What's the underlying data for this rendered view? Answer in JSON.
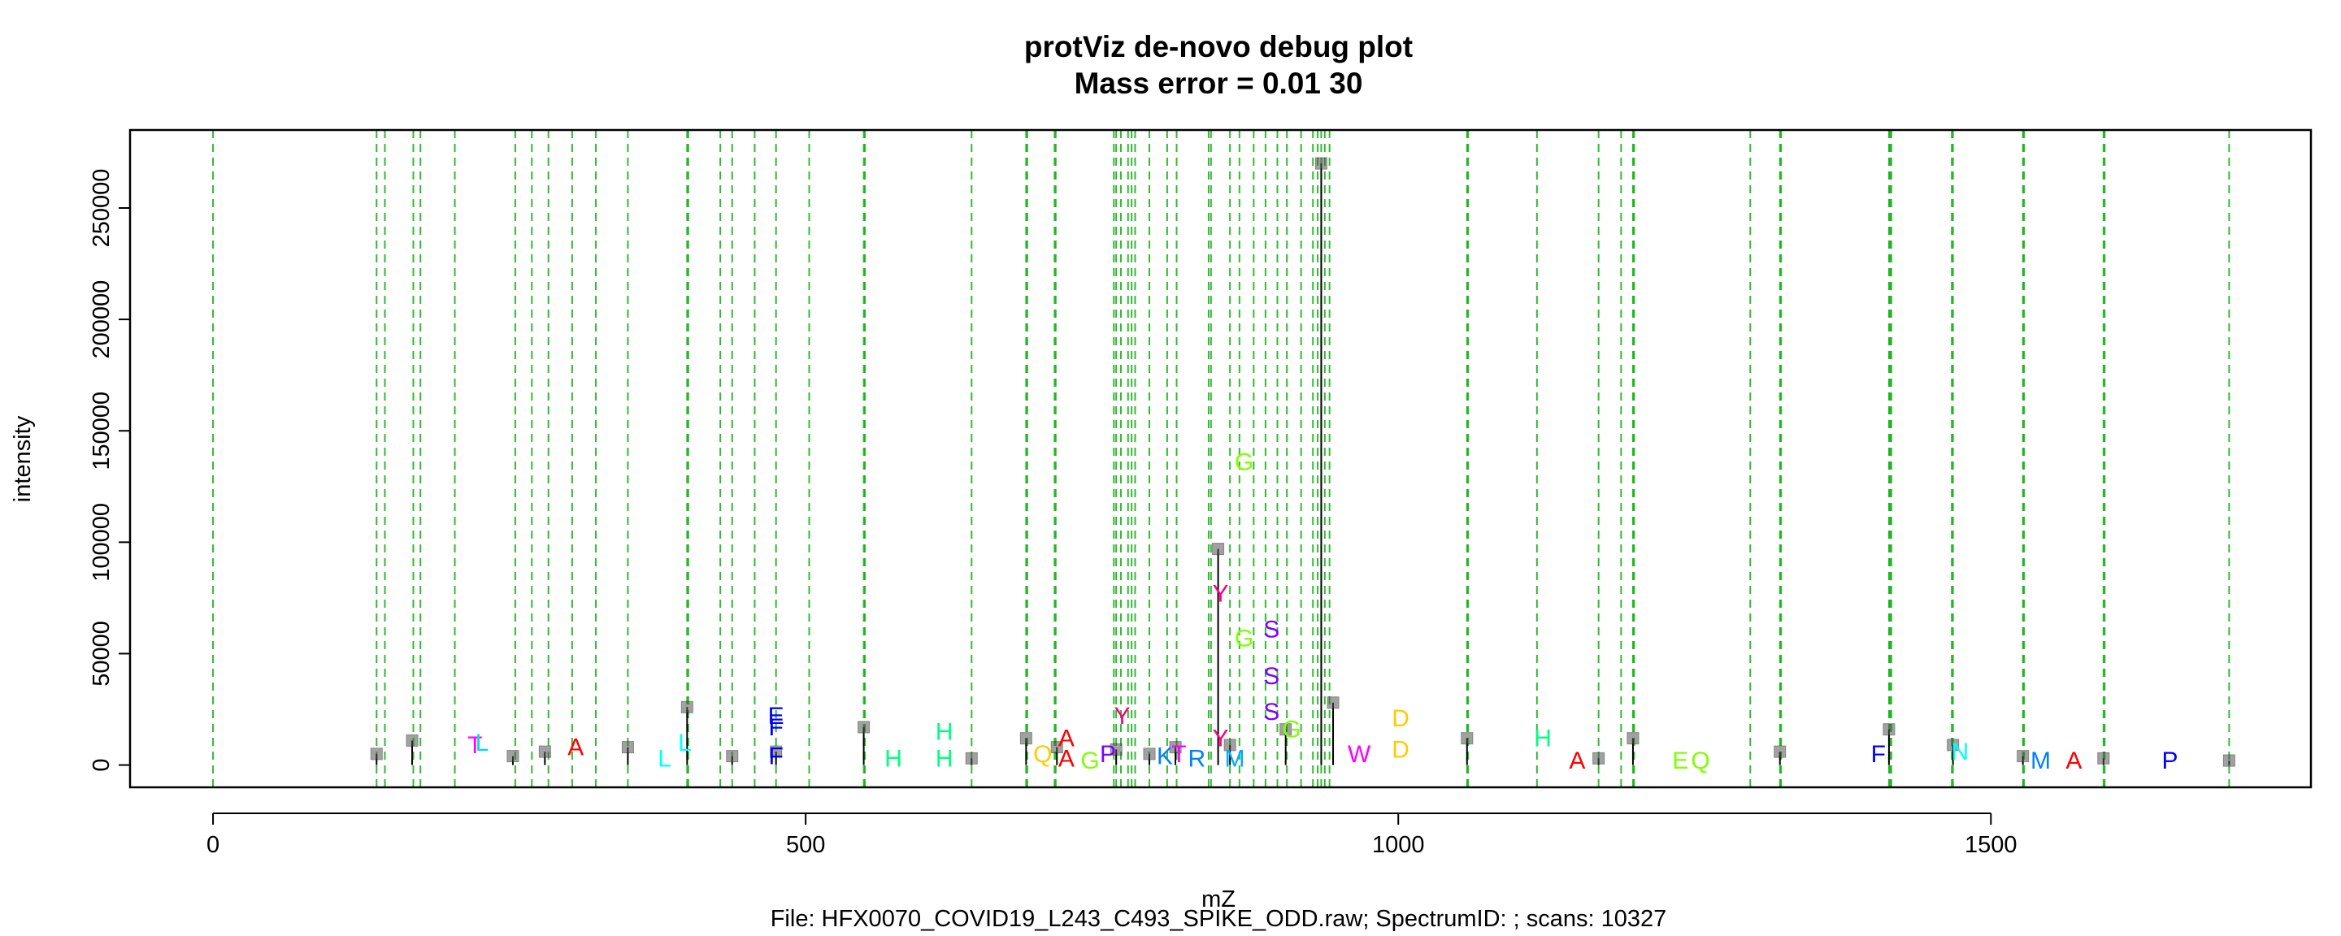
{
  "chart_data": {
    "type": "scatter",
    "title": "protViz de-novo debug plot",
    "subtitle": "Mass error = 0.01 30",
    "xlabel": "mZ",
    "ylabel": "intensity",
    "caption": "File: HFX0070_COVID19_L243_C493_SPIKE_ODD.raw; SpectrumID: ; scans: 10327",
    "xlim": [
      -70,
      1770
    ],
    "ylim": [
      -10000,
      285000
    ],
    "x_ticks": [
      0,
      500,
      1000,
      1500
    ],
    "x_tick_labels": [
      "0",
      "500",
      "1000",
      "1500"
    ],
    "y_ticks": [
      0,
      50000,
      100000,
      150000,
      200000,
      250000
    ],
    "y_tick_labels": [
      "0",
      "50000",
      "100000",
      "150000",
      "200000",
      "250000"
    ],
    "grid": false,
    "reference_lines": {
      "color": "#00aa00",
      "x": [
        0,
        138,
        145,
        169,
        175,
        204,
        255,
        269,
        283,
        303,
        323,
        350,
        400,
        401,
        428,
        438,
        457,
        475,
        503,
        549,
        550,
        640,
        686,
        687,
        710,
        711,
        760,
        762,
        766,
        772,
        775,
        778,
        790,
        805,
        813,
        840,
        842,
        858,
        866,
        878,
        888,
        898,
        906,
        918,
        928,
        932,
        935,
        938,
        942,
        1058,
        1059,
        1117,
        1169,
        1188,
        1198,
        1199,
        1297,
        1322,
        1323,
        1414,
        1415,
        1416,
        1467,
        1468,
        1527,
        1528,
        1595,
        1596,
        1701
      ]
    },
    "peaks": {
      "color": "#000000",
      "x": [
        138,
        168,
        253,
        280,
        350,
        400,
        438,
        475,
        549,
        640,
        686,
        712,
        762,
        790,
        812,
        848,
        858,
        905,
        935,
        945,
        1058,
        1169,
        1198,
        1322,
        1414,
        1468,
        1527,
        1595,
        1701
      ],
      "y": [
        5000,
        11000,
        4000,
        6000,
        8000,
        26000,
        4000,
        6000,
        17000,
        3000,
        12000,
        8000,
        7000,
        5000,
        8000,
        97000,
        9000,
        16000,
        270000,
        28000,
        12000,
        3000,
        12000,
        6000,
        16000,
        9000,
        4000,
        3000,
        2000
      ]
    },
    "ion_labels": [
      {
        "text": "T",
        "x": 221,
        "y": 9000,
        "color": "#ff00ff"
      },
      {
        "text": "L",
        "x": 227,
        "y": 10000,
        "color": "#00dddd"
      },
      {
        "text": "A",
        "x": 306,
        "y": 8000,
        "color": "#ff0000"
      },
      {
        "text": "L",
        "x": 381,
        "y": 3000,
        "color": "#00ffff"
      },
      {
        "text": "L",
        "x": 398,
        "y": 10000,
        "color": "#00ffff"
      },
      {
        "text": "E",
        "x": 475,
        "y": 22000,
        "color": "#0000ff"
      },
      {
        "text": "F",
        "x": 475,
        "y": 17000,
        "color": "#0000ff"
      },
      {
        "text": "F",
        "x": 475,
        "y": 4000,
        "color": "#0000ff"
      },
      {
        "text": "H",
        "x": 574,
        "y": 3000,
        "color": "#00ff80"
      },
      {
        "text": "H",
        "x": 617,
        "y": 3000,
        "color": "#00ff80"
      },
      {
        "text": "H",
        "x": 617,
        "y": 15000,
        "color": "#00ff80"
      },
      {
        "text": "Q",
        "x": 700,
        "y": 5000,
        "color": "#ffcc00"
      },
      {
        "text": "A",
        "x": 720,
        "y": 12000,
        "color": "#ff0000"
      },
      {
        "text": "A",
        "x": 720,
        "y": 3000,
        "color": "#ff0000"
      },
      {
        "text": "G",
        "x": 740,
        "y": 2000,
        "color": "#80ff00"
      },
      {
        "text": "P",
        "x": 755,
        "y": 5000,
        "color": "#8000ff"
      },
      {
        "text": "Y",
        "x": 767,
        "y": 22000,
        "color": "#ff0080"
      },
      {
        "text": "T",
        "x": 815,
        "y": 5000,
        "color": "#ff00ff"
      },
      {
        "text": "R",
        "x": 830,
        "y": 3000,
        "color": "#0080ff"
      },
      {
        "text": "K",
        "x": 803,
        "y": 4000,
        "color": "#0080ff"
      },
      {
        "text": "Y",
        "x": 850,
        "y": 77000,
        "color": "#ff0080"
      },
      {
        "text": "Y",
        "x": 850,
        "y": 12000,
        "color": "#ff0080"
      },
      {
        "text": "G",
        "x": 870,
        "y": 136000,
        "color": "#80ff00"
      },
      {
        "text": "G",
        "x": 870,
        "y": 57000,
        "color": "#80ff00"
      },
      {
        "text": "M",
        "x": 862,
        "y": 3000,
        "color": "#00aaff"
      },
      {
        "text": "S",
        "x": 893,
        "y": 61000,
        "color": "#8000ff"
      },
      {
        "text": "S",
        "x": 893,
        "y": 40000,
        "color": "#8000ff"
      },
      {
        "text": "S",
        "x": 893,
        "y": 24000,
        "color": "#8000ff"
      },
      {
        "text": "G",
        "x": 910,
        "y": 16000,
        "color": "#80ff00"
      },
      {
        "text": "W",
        "x": 967,
        "y": 5000,
        "color": "#ff00ff"
      },
      {
        "text": "D",
        "x": 1002,
        "y": 21000,
        "color": "#ffcc00"
      },
      {
        "text": "D",
        "x": 1002,
        "y": 7000,
        "color": "#ffcc00"
      },
      {
        "text": "H",
        "x": 1122,
        "y": 12000,
        "color": "#00ff80"
      },
      {
        "text": "A",
        "x": 1151,
        "y": 2000,
        "color": "#ff0000"
      },
      {
        "text": "E",
        "x": 1238,
        "y": 2000,
        "color": "#80ff00"
      },
      {
        "text": "Q",
        "x": 1255,
        "y": 2000,
        "color": "#80ff00"
      },
      {
        "text": "F",
        "x": 1405,
        "y": 5000,
        "color": "#0000ff"
      },
      {
        "text": "N",
        "x": 1474,
        "y": 6000,
        "color": "#00ffff"
      },
      {
        "text": "M",
        "x": 1542,
        "y": 2000,
        "color": "#0080ff"
      },
      {
        "text": "A",
        "x": 1570,
        "y": 2000,
        "color": "#ff0000"
      },
      {
        "text": "P",
        "x": 1651,
        "y": 2000,
        "color": "#0000ff"
      }
    ]
  }
}
